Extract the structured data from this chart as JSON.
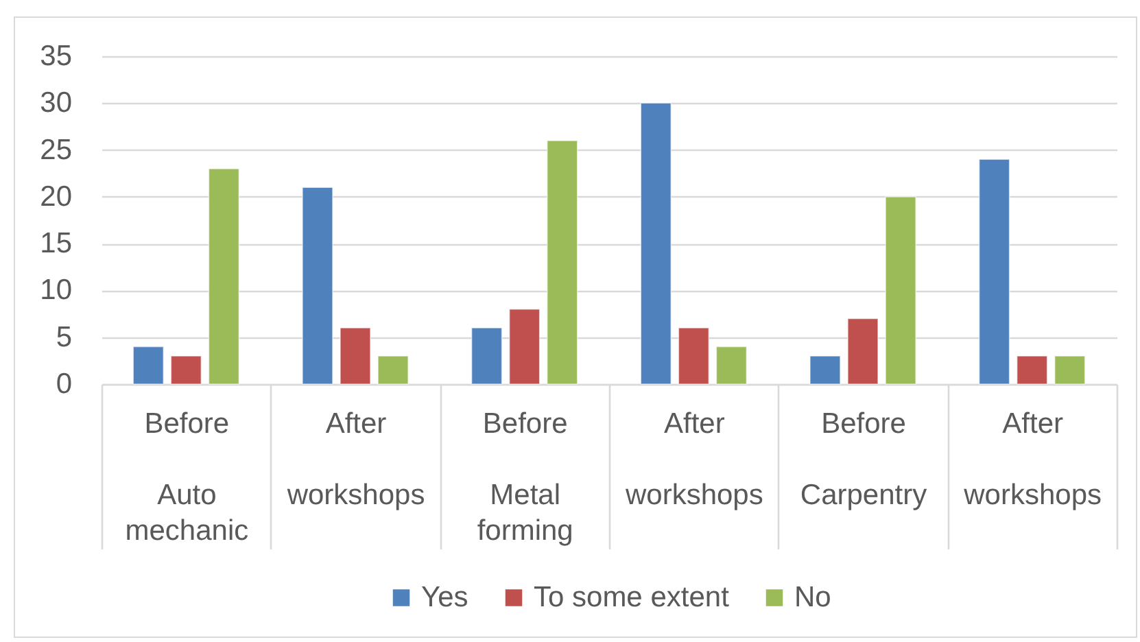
{
  "chart_data": {
    "type": "bar",
    "categories": [
      "Before\nAuto\nmechanic",
      "After\nworkshops",
      "Before\nMetal\nforming",
      "After\nworkshops",
      "Before\nCarpentry",
      "After\nworkshops"
    ],
    "series": [
      {
        "name": "Yes",
        "color": "#4f81bd",
        "values": [
          4,
          21,
          6,
          30,
          3,
          24
        ]
      },
      {
        "name": "To some extent",
        "color": "#c0504d",
        "values": [
          3,
          6,
          8,
          6,
          7,
          3
        ]
      },
      {
        "name": "No",
        "color": "#9bbb59",
        "values": [
          23,
          3,
          26,
          4,
          20,
          3
        ]
      }
    ],
    "ylim": [
      0,
      35
    ],
    "yticks": [
      0,
      5,
      10,
      15,
      20,
      25,
      30,
      35
    ],
    "grid": "y",
    "legend": "bottom"
  }
}
